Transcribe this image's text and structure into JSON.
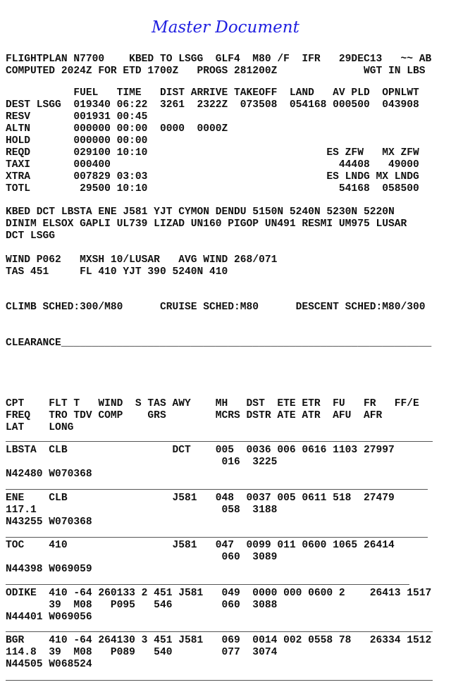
{
  "title": "Master Document",
  "header": {
    "lines": [
      "FLIGHTPLAN N7700    KBED TO LSGG  GLF4  M80 /F  IFR   29DEC13   ~~ AB",
      "COMPUTED 2024Z FOR ETD 1700Z   PROGS 281200Z              WGT IN LBS"
    ]
  },
  "fuel_summary": {
    "lines": [
      "           FUEL   TIME   DIST ARRIVE TAKEOFF  LAND   AV PLD  OPNLWT",
      "DEST LSGG  019340 06:22  3261  2322Z  073508  054168 000500  043908",
      "RESV       001931 00:45",
      "ALTN       000000 00:00  0000  0000Z",
      "HOLD       000000 00:00",
      "REQD       029100 10:10                             ES ZFW   MX ZFW",
      "TAXI       000400                                     44408   49000",
      "XTRA       007829 03:03                             ES LNDG MX LNDG",
      "TOTL        29500 10:10                               54168  058500"
    ]
  },
  "route": {
    "lines": [
      "KBED DCT LBSTA ENE J581 YJT CYMON DENDU 5150N 5240N 5230N 5220N",
      "DINIM ELSOX GAPLI UL739 LIZAD UN160 PIGOP UN491 RESMI UM975 LUSAR",
      "DCT LSGG"
    ]
  },
  "wind": {
    "lines": [
      "WIND P062   MXSH 10/LUSAR   AVG WIND 268/071",
      "TAS 451     FL 410 YJT 390 5240N 410"
    ]
  },
  "schedules": "CLIMB SCHED:300/M80      CRUISE SCHED:M80      DESCENT SCHED:M80/300",
  "clearance": "CLEARANCE____________________________________________________________",
  "nav_log": {
    "header_lines": [
      "CPT    FLT T   WIND  S TAS AWY    MH   DST  ETE ETR  FU   FR   FF/E",
      "FREQ   TRO TDV COMP    GRS        MCRS DSTR ATE ATR  AFU  AFR",
      "LAT    LONG"
    ],
    "rows": [
      {
        "lines": [
          "LBSTA  CLB                 DCT    005  0036 006 0616 1103 27997",
          "                                   016  3225",
          "N42480 W070368"
        ]
      },
      {
        "lines": [
          "ENE    CLB                 J581   048  0037 005 0611 518  27479",
          "117.1                              058  3188",
          "N43255 W070368"
        ]
      },
      {
        "lines": [
          "TOC    410                 J581   047  0099 011 0600 1065 26414",
          "                                   060  3089",
          "N44398 W069059"
        ]
      },
      {
        "lines": [
          "ODIKE  410 -64 260133 2 451 J581   049  0000 000 0600 2    26413 1517",
          "       39  M08   P095   546        060  3088",
          "N44401 W069056"
        ]
      },
      {
        "lines": [
          "BGR    410 -64 264130 3 451 J581   069  0014 002 0558 78   26334 1512",
          "114.8  39  M08   P089   540        077  3074",
          "N44505 W068524"
        ]
      }
    ]
  }
}
